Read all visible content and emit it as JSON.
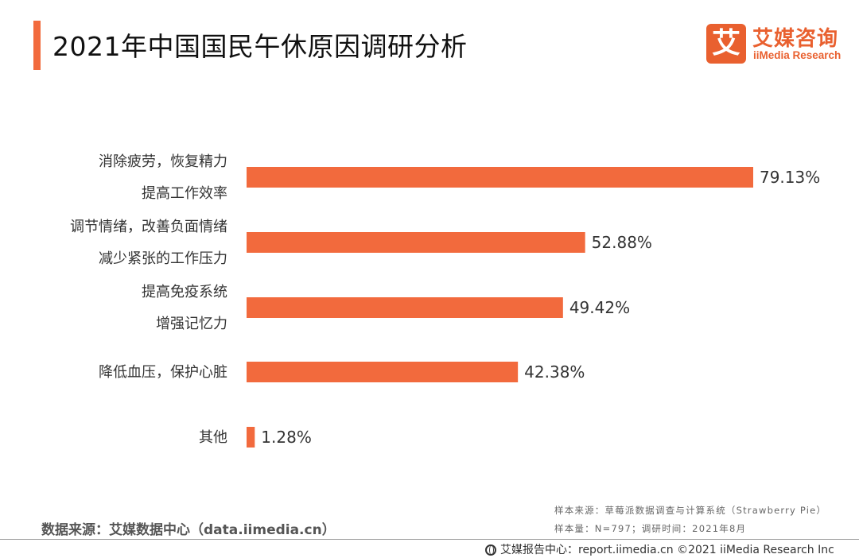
{
  "title": "2021年中国国民午休原因调研分析",
  "logo": {
    "mark": "艾",
    "cn": "艾媒咨询",
    "en": "iiMedia Research"
  },
  "colors": {
    "accent": "#f26a3d",
    "bar": "#f26a3d",
    "brand": "#e9602f"
  },
  "chart_data": {
    "type": "bar",
    "orientation": "horizontal",
    "categories": [
      "消除疲劳，恢复精力",
      "提高工作效率",
      "调节情绪，改善负面情绪",
      "减少紧张的工作压力",
      "提高免疫系统",
      "增强记忆力",
      "降低血压，保护心脏",
      "其他"
    ],
    "bars": [
      {
        "labels": [
          "消除疲劳，恢复精力",
          "提高工作效率"
        ],
        "value": 79.13,
        "value_label": "79.13%"
      },
      {
        "labels": [
          "调节情绪，改善负面情绪",
          "减少紧张的工作压力"
        ],
        "value": 52.88,
        "value_label": "52.88%"
      },
      {
        "labels": [
          "提高免疫系统",
          "增强记忆力"
        ],
        "value": 49.42,
        "value_label": "49.42%"
      },
      {
        "labels": [
          "降低血压，保护心脏"
        ],
        "value": 42.38,
        "value_label": "42.38%"
      },
      {
        "labels": [
          "其他"
        ],
        "value": 1.28,
        "value_label": "1.28%"
      }
    ],
    "unit": "%",
    "xlim": [
      0,
      100
    ],
    "grid": false,
    "legend": "none"
  },
  "footer": {
    "source": "数据来源：艾媒数据中心（data.iimedia.cn）",
    "sample_source": "样本来源：草莓派数据调查与计算系统（Strawberry Pie）",
    "sample_info": "样本量：N=797；调研时间：2021年8月",
    "copyright": "艾媒报告中心：report.iimedia.cn ©2021  iiMedia Research Inc",
    "globe_icon": "globe-icon"
  }
}
